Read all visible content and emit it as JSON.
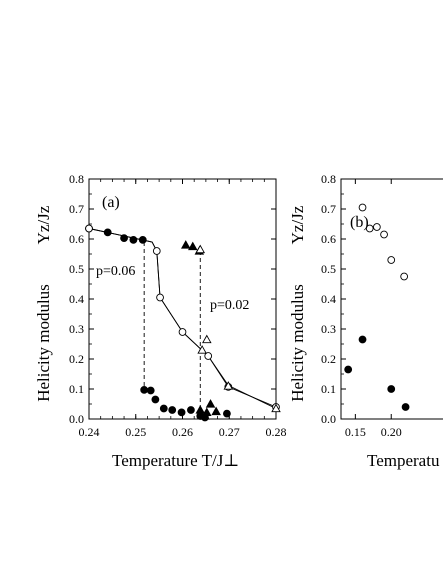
{
  "chart_data": [
    {
      "type": "scatter",
      "panel_label": "(a)",
      "xlabel": "Temperature T/J⊥",
      "ylabel_text": "Helicity modulus",
      "ylabel_symbol": "Υz/Jz",
      "xlim": [
        0.24,
        0.28
      ],
      "ylim": [
        0.0,
        0.8
      ],
      "x_ticks": [
        0.24,
        0.25,
        0.26,
        0.27,
        0.28
      ],
      "x_tick_labels": [
        "0.24",
        "0.25",
        "0.26",
        "0.27",
        "0.28"
      ],
      "y_ticks": [
        0.0,
        0.1,
        0.2,
        0.3,
        0.4,
        0.5,
        0.6,
        0.7,
        0.8
      ],
      "y_tick_labels": [
        "0.0",
        "0.1",
        "0.2",
        "0.3",
        "0.4",
        "0.5",
        "0.6",
        "0.7",
        "0.8"
      ],
      "annotations": [
        {
          "text": "p=0.06",
          "x": 0.2455,
          "y": 0.52
        },
        {
          "text": "p=0.02",
          "x": 0.2665,
          "y": 0.38
        }
      ],
      "dashed_lines": [
        {
          "x": [
            0.2518,
            0.2518
          ],
          "y": [
            0.59,
            0.09
          ]
        },
        {
          "x": [
            0.2638,
            0.2638
          ],
          "y": [
            0.56,
            0.01
          ]
        }
      ],
      "series": [
        {
          "marker": "filled-circle",
          "points": [
            [
              0.24,
              0.635
            ],
            [
              0.244,
              0.622
            ],
            [
              0.2475,
              0.603
            ],
            [
              0.2495,
              0.597
            ],
            [
              0.2515,
              0.597
            ],
            [
              0.2518,
              0.097
            ],
            [
              0.2532,
              0.095
            ],
            [
              0.2542,
              0.065
            ],
            [
              0.256,
              0.035
            ],
            [
              0.2578,
              0.03
            ],
            [
              0.2598,
              0.022
            ],
            [
              0.2618,
              0.03
            ],
            [
              0.2638,
              0.01
            ],
            [
              0.2648,
              0.005
            ],
            [
              0.2695,
              0.018
            ]
          ]
        },
        {
          "marker": "open-circle",
          "points": [
            [
              0.24,
              0.635
            ],
            [
              0.2545,
              0.56
            ],
            [
              0.2552,
              0.405
            ],
            [
              0.26,
              0.29
            ],
            [
              0.2655,
              0.21
            ],
            [
              0.2698,
              0.107
            ],
            [
              0.28,
              0.04
            ]
          ]
        },
        {
          "marker": "filled-triangle",
          "points": [
            [
              0.2607,
              0.58
            ],
            [
              0.2622,
              0.575
            ],
            [
              0.2636,
              0.56
            ],
            [
              0.2638,
              0.03
            ],
            [
              0.2648,
              0.01
            ],
            [
              0.2652,
              0.022
            ],
            [
              0.266,
              0.05
            ],
            [
              0.2672,
              0.025
            ]
          ]
        },
        {
          "marker": "open-triangle",
          "points": [
            [
              0.2638,
              0.565
            ],
            [
              0.2642,
              0.23
            ],
            [
              0.2652,
              0.265
            ],
            [
              0.2698,
              0.11
            ],
            [
              0.28,
              0.035
            ]
          ]
        }
      ],
      "solid_lines": [
        [
          [
            0.24,
            0.635
          ],
          [
            0.2535,
            0.59
          ],
          [
            0.2545,
            0.56
          ],
          [
            0.2552,
            0.405
          ],
          [
            0.26,
            0.29
          ],
          [
            0.2655,
            0.21
          ],
          [
            0.2698,
            0.107
          ],
          [
            0.28,
            0.04
          ]
        ],
        [
          [
            0.24,
            0.635
          ],
          [
            0.2535,
            0.59
          ],
          [
            0.2545,
            0.56
          ],
          [
            0.2552,
            0.405
          ],
          [
            0.26,
            0.29
          ],
          [
            0.2655,
            0.21
          ],
          [
            0.2698,
            0.112
          ],
          [
            0.28,
            0.035
          ]
        ]
      ]
    },
    {
      "type": "scatter",
      "panel_label": "(b)",
      "xlabel": "Temperatu",
      "ylabel_text": "Helicity modulus",
      "ylabel_symbol": "Υz/Jz",
      "xlim": [
        0.13,
        0.3
      ],
      "ylim": [
        0.0,
        0.8
      ],
      "x_ticks": [
        0.15,
        0.2
      ],
      "x_tick_labels": [
        "0.15",
        "0.20"
      ],
      "y_ticks": [
        0.0,
        0.1,
        0.2,
        0.3,
        0.4,
        0.5,
        0.6,
        0.7,
        0.8
      ],
      "y_tick_labels": [
        "0.0",
        "0.1",
        "0.2",
        "0.3",
        "0.4",
        "0.5",
        "0.6",
        "0.7",
        "0.8"
      ],
      "series": [
        {
          "marker": "open-circle",
          "points": [
            [
              0.16,
              0.705
            ],
            [
              0.17,
              0.635
            ],
            [
              0.18,
              0.64
            ],
            [
              0.19,
              0.615
            ],
            [
              0.2,
              0.53
            ],
            [
              0.218,
              0.475
            ]
          ]
        },
        {
          "marker": "filled-circle",
          "points": [
            [
              0.14,
              0.165
            ],
            [
              0.16,
              0.265
            ],
            [
              0.2,
              0.1
            ],
            [
              0.22,
              0.04
            ]
          ]
        }
      ]
    }
  ]
}
